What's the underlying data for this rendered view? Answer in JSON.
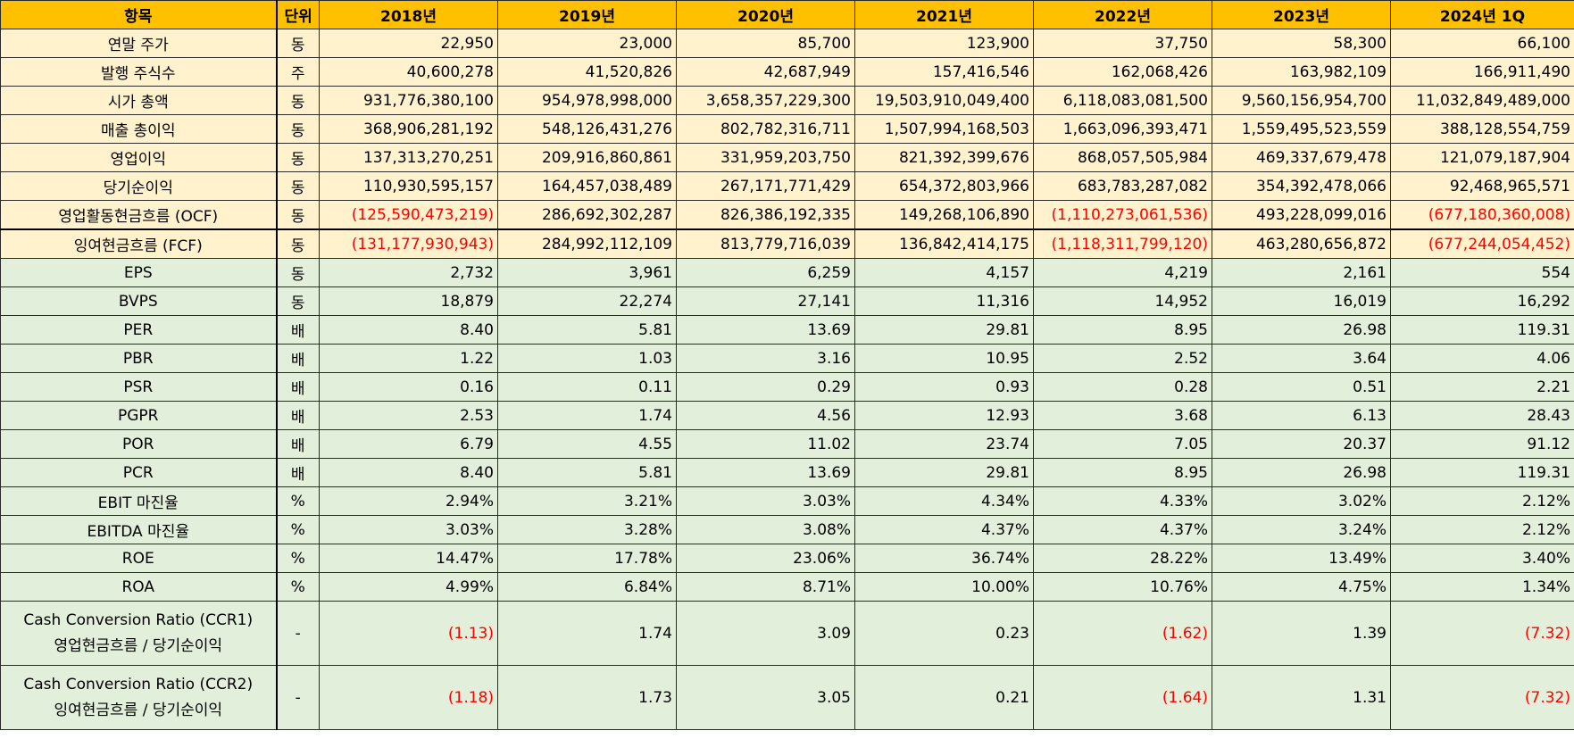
{
  "header": {
    "item": "항목",
    "unit": "단위",
    "years": [
      "2018년",
      "2019년",
      "2020년",
      "2021년",
      "2022년",
      "2023년",
      "2024년 1Q"
    ]
  },
  "rows": [
    {
      "label": "연말 주가",
      "unit": "동",
      "values": [
        "22,950",
        "23,000",
        "85,700",
        "123,900",
        "37,750",
        "58,300",
        "66,100"
      ]
    },
    {
      "label": "발행 주식수",
      "unit": "주",
      "values": [
        "40,600,278",
        "41,520,826",
        "42,687,949",
        "157,416,546",
        "162,068,426",
        "163,982,109",
        "166,911,490"
      ]
    },
    {
      "label": "시가 총액",
      "unit": "동",
      "values": [
        "931,776,380,100",
        "954,978,998,000",
        "3,658,357,229,300",
        "19,503,910,049,400",
        "6,118,083,081,500",
        "9,560,156,954,700",
        "11,032,849,489,000"
      ]
    },
    {
      "label": "매출 총이익",
      "unit": "동",
      "values": [
        "368,906,281,192",
        "548,126,431,276",
        "802,782,316,711",
        "1,507,994,168,503",
        "1,663,096,393,471",
        "1,559,495,523,559",
        "388,128,554,759"
      ]
    },
    {
      "label": "영업이익",
      "unit": "동",
      "values": [
        "137,313,270,251",
        "209,916,860,861",
        "331,959,203,750",
        "821,392,399,676",
        "868,057,505,984",
        "469,337,679,478",
        "121,079,187,904"
      ]
    },
    {
      "label": "당기순이익",
      "unit": "동",
      "values": [
        "110,930,595,157",
        "164,457,038,489",
        "267,171,771,429",
        "654,372,803,966",
        "683,783,287,082",
        "354,392,478,066",
        "92,468,965,571"
      ]
    },
    {
      "label": "영업활동현금흐름 (OCF)",
      "unit": "동",
      "values": [
        "(125,590,473,219)",
        "286,692,302,287",
        "826,386,192,335",
        "149,268,106,890",
        "(1,110,273,061,536)",
        "493,228,099,016",
        "(677,180,360,008)"
      ]
    },
    {
      "label": "잉여현금흐름 (FCF)",
      "unit": "동",
      "values": [
        "(131,177,930,943)",
        "284,992,112,109",
        "813,779,716,039",
        "136,842,414,175",
        "(1,118,311,799,120)",
        "463,280,656,872",
        "(677,244,054,452)"
      ]
    },
    {
      "label": "EPS",
      "unit": "동",
      "values": [
        "2,732",
        "3,961",
        "6,259",
        "4,157",
        "4,219",
        "2,161",
        "554"
      ]
    },
    {
      "label": "BVPS",
      "unit": "동",
      "values": [
        "18,879",
        "22,274",
        "27,141",
        "11,316",
        "14,952",
        "16,019",
        "16,292"
      ]
    },
    {
      "label": "PER",
      "unit": "배",
      "values": [
        "8.40",
        "5.81",
        "13.69",
        "29.81",
        "8.95",
        "26.98",
        "119.31"
      ]
    },
    {
      "label": "PBR",
      "unit": "배",
      "values": [
        "1.22",
        "1.03",
        "3.16",
        "10.95",
        "2.52",
        "3.64",
        "4.06"
      ]
    },
    {
      "label": "PSR",
      "unit": "배",
      "values": [
        "0.16",
        "0.11",
        "0.29",
        "0.93",
        "0.28",
        "0.51",
        "2.21"
      ]
    },
    {
      "label": "PGPR",
      "unit": "배",
      "values": [
        "2.53",
        "1.74",
        "4.56",
        "12.93",
        "3.68",
        "6.13",
        "28.43"
      ]
    },
    {
      "label": "POR",
      "unit": "배",
      "values": [
        "6.79",
        "4.55",
        "11.02",
        "23.74",
        "7.05",
        "20.37",
        "91.12"
      ]
    },
    {
      "label": "PCR",
      "unit": "배",
      "values": [
        "8.40",
        "5.81",
        "13.69",
        "29.81",
        "8.95",
        "26.98",
        "119.31"
      ]
    },
    {
      "label": "EBIT 마진율",
      "unit": "%",
      "values": [
        "2.94%",
        "3.21%",
        "3.03%",
        "4.34%",
        "4.33%",
        "3.02%",
        "2.12%"
      ]
    },
    {
      "label": "EBITDA 마진율",
      "unit": "%",
      "values": [
        "3.03%",
        "3.28%",
        "3.08%",
        "4.37%",
        "4.37%",
        "3.24%",
        "2.12%"
      ]
    },
    {
      "label": "ROE",
      "unit": "%",
      "values": [
        "14.47%",
        "17.78%",
        "23.06%",
        "36.74%",
        "28.22%",
        "13.49%",
        "3.40%"
      ]
    },
    {
      "label": "ROA",
      "unit": "%",
      "values": [
        "4.99%",
        "6.84%",
        "8.71%",
        "10.00%",
        "10.76%",
        "4.75%",
        "1.34%"
      ]
    },
    {
      "label": "Cash Conversion Ratio (CCR1)",
      "label2": "영업현금흐름 / 당기순이익",
      "unit": "-",
      "values": [
        "(1.13)",
        "1.74",
        "3.09",
        "0.23",
        "(1.62)",
        "1.39",
        "(7.32)"
      ]
    },
    {
      "label": "Cash Conversion Ratio (CCR2)",
      "label2": "잉여현금흐름 / 당기순이익",
      "unit": "-",
      "values": [
        "(1.18)",
        "1.73",
        "3.05",
        "0.21",
        "(1.64)",
        "1.31",
        "(7.32)"
      ]
    }
  ],
  "colors": {
    "header_bg": "#ffc000",
    "section_a_bg": "#fff2cc",
    "section_b_bg": "#e2efda",
    "negative_text": "#ff0000",
    "border": "#2b2b2b"
  }
}
